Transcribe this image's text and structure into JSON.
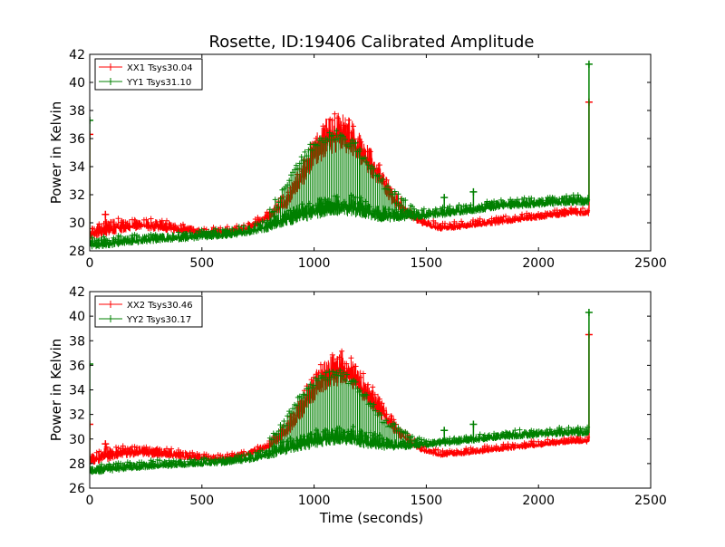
{
  "figure": {
    "title": "Rosette, ID:19406 Calibrated Amplitude",
    "xlabel": "Time (seconds)"
  },
  "chart_data": [
    {
      "type": "line",
      "ylabel": "Power in Kelvin",
      "xlabel": "",
      "xlim": [
        0,
        2500
      ],
      "ylim": [
        28,
        42
      ],
      "xticks": [
        0,
        500,
        1000,
        1500,
        2000,
        2500
      ],
      "yticks": [
        28,
        30,
        32,
        34,
        36,
        38,
        40,
        42
      ],
      "legend_position": "top-left",
      "marker": "+",
      "grid": false,
      "series": [
        {
          "name": "XX1 Tsys30.04",
          "color": "#ff0000",
          "x": [
            0,
            40,
            80,
            150,
            220,
            300,
            400,
            500,
            600,
            700,
            800,
            880,
            940,
            1000,
            1060,
            1120,
            1180,
            1240,
            1300,
            1360,
            1420,
            1480,
            1560,
            1650,
            1750,
            1850,
            1950,
            2050,
            2150,
            2225
          ],
          "y": [
            29.1,
            29.3,
            29.5,
            29.7,
            29.8,
            29.7,
            29.5,
            29.3,
            29.3,
            29.6,
            30.4,
            31.5,
            33.0,
            34.8,
            35.8,
            36.2,
            35.6,
            34.3,
            33.0,
            31.5,
            30.6,
            30.0,
            29.6,
            29.7,
            29.9,
            30.1,
            30.3,
            30.5,
            30.7,
            30.7
          ],
          "spread": [
            0.6,
            0.7,
            0.8,
            0.7,
            0.6,
            0.6,
            0.5,
            0.4,
            0.4,
            0.4,
            0.5,
            0.8,
            1.2,
            1.6,
            1.8,
            1.8,
            1.6,
            1.4,
            1.1,
            0.8,
            0.5,
            0.4,
            0.4,
            0.4,
            0.4,
            0.4,
            0.4,
            0.4,
            0.4,
            0.4
          ],
          "spikes": [
            [
              0,
              36.3
            ],
            [
              70,
              30.6
            ],
            [
              2225,
              38.6
            ]
          ]
        },
        {
          "name": "YY1 Tsys31.10",
          "color": "#008000",
          "x": [
            0,
            40,
            80,
            150,
            220,
            300,
            400,
            500,
            600,
            700,
            800,
            880,
            940,
            1000,
            1060,
            1120,
            1180,
            1240,
            1300,
            1360,
            1420,
            1480,
            1560,
            1650,
            1750,
            1850,
            1950,
            2050,
            2150,
            2225
          ],
          "y": [
            28.4,
            28.4,
            28.5,
            28.6,
            28.7,
            28.8,
            28.9,
            29.0,
            29.1,
            29.3,
            29.7,
            30.2,
            30.5,
            30.8,
            31.0,
            31.1,
            31.0,
            30.7,
            30.5,
            30.4,
            30.4,
            30.5,
            30.6,
            30.8,
            31.0,
            31.2,
            31.3,
            31.4,
            31.5,
            31.5
          ],
          "spread": [
            0.6,
            0.6,
            0.6,
            0.5,
            0.5,
            0.5,
            0.5,
            0.5,
            0.5,
            0.5,
            0.6,
            0.8,
            0.9,
            1.0,
            1.0,
            1.0,
            1.0,
            0.9,
            0.8,
            0.6,
            0.5,
            0.5,
            0.5,
            0.5,
            0.5,
            0.5,
            0.5,
            0.5,
            0.5,
            0.5
          ],
          "envelope": [
            [
              800,
              31.0
            ],
            [
              880,
              33.0
            ],
            [
              940,
              35.0
            ],
            [
              1000,
              36.0
            ],
            [
              1060,
              36.5
            ],
            [
              1120,
              36.7
            ],
            [
              1180,
              35.9
            ],
            [
              1240,
              34.5
            ],
            [
              1300,
              33.2
            ],
            [
              1360,
              32.3
            ],
            [
              1420,
              31.5
            ],
            [
              1480,
              31.0
            ]
          ],
          "spikes": [
            [
              0,
              37.3
            ],
            [
              1580,
              31.8
            ],
            [
              1710,
              32.2
            ],
            [
              2225,
              41.3
            ]
          ]
        }
      ]
    },
    {
      "type": "line",
      "ylabel": "Power in Kelvin",
      "xlabel": "Time (seconds)",
      "xlim": [
        0,
        2500
      ],
      "ylim": [
        26,
        42
      ],
      "xticks": [
        0,
        500,
        1000,
        1500,
        2000,
        2500
      ],
      "yticks": [
        26,
        28,
        30,
        32,
        34,
        36,
        38,
        40,
        42
      ],
      "legend_position": "top-left",
      "marker": "+",
      "grid": false,
      "series": [
        {
          "name": "XX2 Tsys30.46",
          "color": "#ff0000",
          "x": [
            0,
            40,
            80,
            150,
            220,
            300,
            400,
            500,
            600,
            700,
            800,
            880,
            940,
            1000,
            1060,
            1120,
            1180,
            1240,
            1300,
            1360,
            1420,
            1480,
            1560,
            1650,
            1750,
            1850,
            1950,
            2050,
            2150,
            2225
          ],
          "y": [
            28.2,
            28.4,
            28.6,
            28.8,
            28.9,
            28.8,
            28.6,
            28.4,
            28.4,
            28.7,
            29.4,
            30.6,
            32.2,
            34.0,
            35.0,
            35.4,
            34.8,
            33.5,
            32.2,
            30.8,
            29.8,
            29.1,
            28.7,
            28.8,
            29.0,
            29.2,
            29.4,
            29.6,
            29.8,
            29.8
          ],
          "spread": [
            0.6,
            0.7,
            0.8,
            0.7,
            0.6,
            0.6,
            0.5,
            0.4,
            0.4,
            0.4,
            0.5,
            0.8,
            1.2,
            1.6,
            1.8,
            1.8,
            1.6,
            1.4,
            1.1,
            0.8,
            0.5,
            0.4,
            0.4,
            0.4,
            0.4,
            0.4,
            0.4,
            0.4,
            0.4,
            0.4
          ],
          "spikes": [
            [
              0,
              31.2
            ],
            [
              70,
              29.6
            ],
            [
              2225,
              38.5
            ]
          ]
        },
        {
          "name": "YY2 Tsys30.17",
          "color": "#008000",
          "x": [
            0,
            40,
            80,
            150,
            220,
            300,
            400,
            500,
            600,
            700,
            800,
            880,
            940,
            1000,
            1060,
            1120,
            1180,
            1240,
            1300,
            1360,
            1420,
            1480,
            1560,
            1650,
            1750,
            1850,
            1950,
            2050,
            2150,
            2225
          ],
          "y": [
            27.4,
            27.4,
            27.5,
            27.6,
            27.7,
            27.8,
            27.9,
            28.0,
            28.1,
            28.3,
            28.7,
            29.2,
            29.5,
            29.8,
            30.0,
            30.1,
            30.0,
            29.7,
            29.5,
            29.4,
            29.4,
            29.5,
            29.6,
            29.8,
            30.0,
            30.2,
            30.3,
            30.4,
            30.5,
            30.5
          ],
          "spread": [
            0.6,
            0.6,
            0.6,
            0.5,
            0.5,
            0.5,
            0.5,
            0.5,
            0.5,
            0.5,
            0.6,
            0.8,
            0.9,
            1.0,
            1.0,
            1.0,
            1.0,
            0.9,
            0.8,
            0.6,
            0.5,
            0.5,
            0.5,
            0.5,
            0.5,
            0.5,
            0.5,
            0.5,
            0.5,
            0.5
          ],
          "envelope": [
            [
              800,
              30.0
            ],
            [
              880,
              32.0
            ],
            [
              940,
              34.0
            ],
            [
              1000,
              35.0
            ],
            [
              1060,
              35.5
            ],
            [
              1120,
              35.7
            ],
            [
              1180,
              34.9
            ],
            [
              1240,
              33.5
            ],
            [
              1300,
              32.2
            ],
            [
              1360,
              31.3
            ],
            [
              1420,
              30.5
            ],
            [
              1480,
              30.0
            ]
          ],
          "spikes": [
            [
              0,
              36.1
            ],
            [
              1580,
              30.7
            ],
            [
              1710,
              31.2
            ],
            [
              2225,
              40.3
            ]
          ]
        }
      ]
    }
  ]
}
